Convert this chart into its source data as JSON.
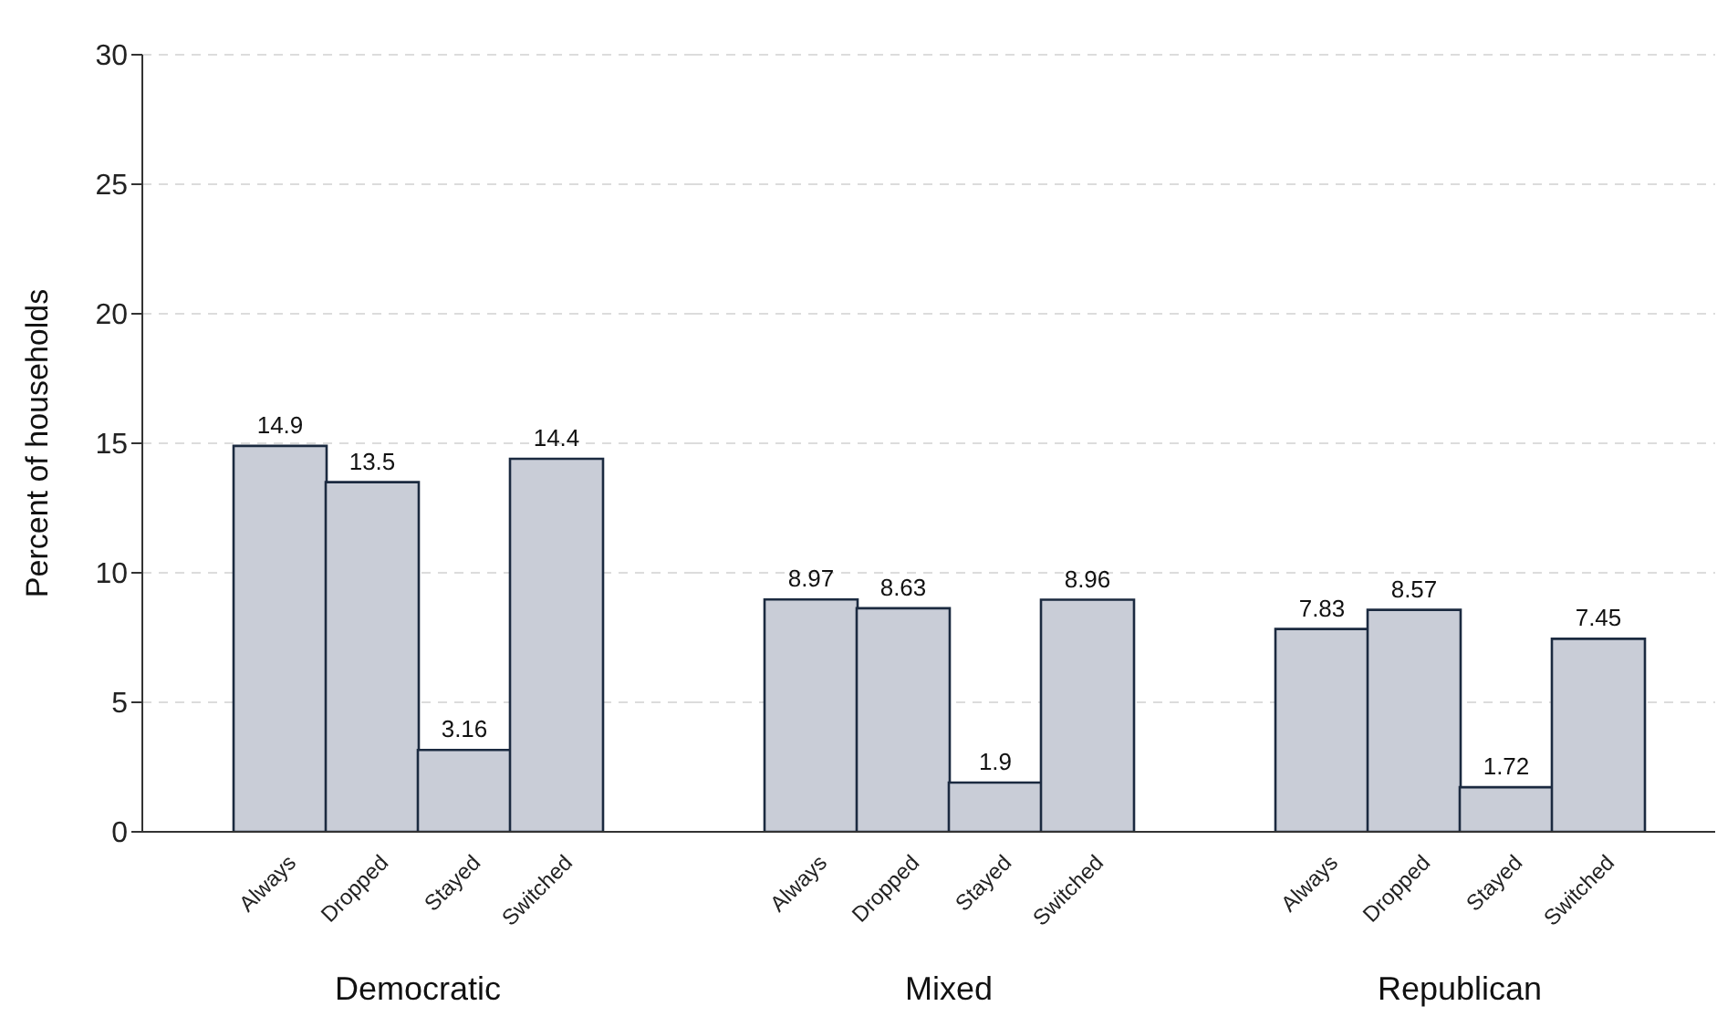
{
  "chart_data": [
    {
      "type": "bar",
      "xlabel": "Democratic",
      "ylabel": "Percent of households",
      "categories": [
        "Always",
        "Dropped",
        "Stayed",
        "Switched"
      ],
      "values": [
        14.9,
        13.5,
        3.16,
        14.4
      ],
      "color": "#c9cdd7",
      "ylim": [
        0,
        30
      ],
      "yticks": [
        0,
        5,
        10,
        15,
        20,
        25,
        30
      ],
      "grid": "y",
      "data_labels": true
    },
    {
      "type": "bar",
      "xlabel": "Mixed",
      "categories": [
        "Always",
        "Dropped",
        "Stayed",
        "Switched"
      ],
      "values": [
        8.97,
        8.63,
        1.9,
        8.96
      ],
      "color": "#c9cdd7",
      "ylim": [
        0,
        30
      ],
      "yticks": [
        0,
        5,
        10,
        15,
        20,
        25,
        30
      ],
      "grid": "y",
      "data_labels": true,
      "tick_labels": "x"
    },
    {
      "type": "bar",
      "xlabel": "Republican",
      "categories": [
        "Always",
        "Dropped",
        "Stayed",
        "Switched"
      ],
      "values": [
        7.83,
        8.57,
        1.72,
        7.45
      ],
      "color": "#c9cdd7",
      "ylim": [
        0,
        30
      ],
      "yticks": [
        0,
        5,
        10,
        15,
        20,
        25,
        30
      ],
      "grid": "y",
      "data_labels": true,
      "tick_labels": "x"
    }
  ]
}
